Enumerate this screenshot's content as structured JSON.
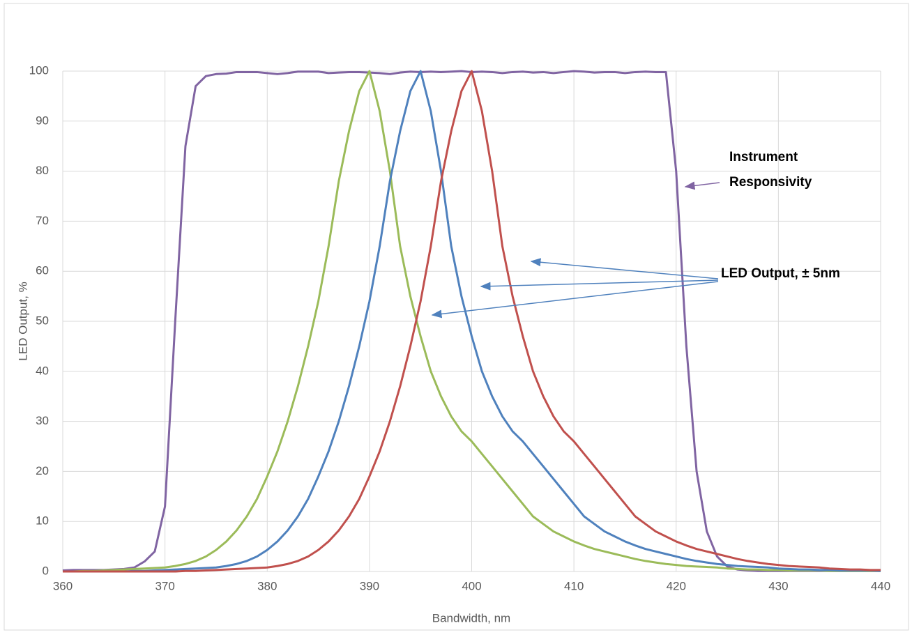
{
  "chart_data": {
    "type": "line",
    "xlabel": "Bandwidth, nm",
    "ylabel": "LED Output,  %",
    "x": [
      360,
      361,
      362,
      363,
      364,
      365,
      366,
      367,
      368,
      369,
      370,
      371,
      372,
      373,
      374,
      375,
      376,
      377,
      378,
      379,
      380,
      381,
      382,
      383,
      384,
      385,
      386,
      387,
      388,
      389,
      390,
      391,
      392,
      393,
      394,
      395,
      396,
      397,
      398,
      399,
      400,
      401,
      402,
      403,
      404,
      405,
      406,
      407,
      408,
      409,
      410,
      411,
      412,
      413,
      414,
      415,
      416,
      417,
      418,
      419,
      420,
      421,
      422,
      423,
      424,
      425,
      426,
      427,
      428,
      429,
      430,
      431,
      432,
      433,
      434,
      435,
      436,
      437,
      438,
      439,
      440
    ],
    "series": [
      {
        "color": "#8064a2",
        "values": [
          0.2,
          0.3,
          0.3,
          0.3,
          0.3,
          0.4,
          0.5,
          0.8,
          2,
          4,
          13,
          50,
          85,
          97,
          99,
          99.4,
          99.5,
          99.8,
          99.8,
          99.8,
          99.6,
          99.4,
          99.6,
          99.9,
          99.9,
          99.9,
          99.6,
          99.7,
          99.8,
          99.8,
          99.7,
          99.6,
          99.4,
          99.7,
          99.9,
          99.8,
          99.9,
          99.8,
          99.9,
          100,
          99.8,
          99.9,
          99.8,
          99.6,
          99.8,
          99.9,
          99.7,
          99.8,
          99.6,
          99.8,
          100,
          99.9,
          99.7,
          99.8,
          99.8,
          99.6,
          99.8,
          99.9,
          99.8,
          99.8,
          80,
          45,
          20,
          8,
          3,
          1,
          0.4,
          0.2,
          0.1,
          0.1,
          0.1,
          0.1,
          0.1,
          0.1,
          0.1,
          0.1,
          0.1,
          0.1,
          0.1,
          0.1,
          0.1
        ]
      },
      {
        "color": "#9bbb59",
        "values": [
          0,
          0,
          0.1,
          0.1,
          0.2,
          0.3,
          0.4,
          0.5,
          0.6,
          0.7,
          0.8,
          1.1,
          1.5,
          2.1,
          3,
          4.3,
          6,
          8.2,
          11,
          14.5,
          19,
          24,
          30,
          37,
          45,
          54,
          65,
          78,
          88,
          96,
          100,
          92,
          80,
          65,
          55,
          47,
          40,
          35,
          31,
          28,
          26,
          23.5,
          21,
          18.5,
          16,
          13.5,
          11,
          9.5,
          8,
          7,
          6,
          5.2,
          4.5,
          4,
          3.5,
          3,
          2.5,
          2.1,
          1.8,
          1.5,
          1.3,
          1.1,
          1,
          0.9,
          0.8,
          0.6,
          0.5,
          0.4,
          0.4,
          0.3,
          0.3,
          0.2,
          0.2,
          0.2,
          0.2,
          0.1,
          0.1,
          0.1,
          0.1,
          0.1,
          0.1
        ]
      },
      {
        "color": "#4f81bd",
        "values": [
          0,
          0,
          0,
          0,
          0,
          0,
          0,
          0.1,
          0.1,
          0.2,
          0.3,
          0.4,
          0.5,
          0.6,
          0.7,
          0.8,
          1.1,
          1.5,
          2.1,
          3,
          4.3,
          6,
          8.2,
          11,
          14.5,
          19,
          24,
          30,
          37,
          45,
          54,
          65,
          78,
          88,
          96,
          100,
          92,
          80,
          65,
          55,
          47,
          40,
          35,
          31,
          28,
          26,
          23.5,
          21,
          18.5,
          16,
          13.5,
          11,
          9.5,
          8,
          7,
          6,
          5.2,
          4.5,
          4,
          3.5,
          3,
          2.5,
          2.1,
          1.8,
          1.5,
          1.3,
          1.1,
          1,
          0.9,
          0.8,
          0.6,
          0.5,
          0.4,
          0.4,
          0.3,
          0.3,
          0.2,
          0.2,
          0.2,
          0.2,
          0.1
        ]
      },
      {
        "color": "#c0504d",
        "values": [
          0,
          0,
          0,
          0,
          0,
          0,
          0,
          0,
          0,
          0,
          0,
          0,
          0.1,
          0.1,
          0.2,
          0.3,
          0.4,
          0.5,
          0.6,
          0.7,
          0.8,
          1.1,
          1.5,
          2.1,
          3,
          4.3,
          6,
          8.2,
          11,
          14.5,
          19,
          24,
          30,
          37,
          45,
          54,
          65,
          78,
          88,
          96,
          100,
          92,
          80,
          65,
          55,
          47,
          40,
          35,
          31,
          28,
          26,
          23.5,
          21,
          18.5,
          16,
          13.5,
          11,
          9.5,
          8,
          7,
          6,
          5.2,
          4.5,
          4,
          3.5,
          3,
          2.5,
          2.1,
          1.8,
          1.5,
          1.3,
          1.1,
          1,
          0.9,
          0.8,
          0.6,
          0.5,
          0.4,
          0.4,
          0.3,
          0.3
        ]
      }
    ],
    "xlim": [
      360,
      440
    ],
    "xticks": [
      360,
      370,
      380,
      390,
      400,
      410,
      420,
      430,
      440
    ],
    "ylim": [
      0,
      100
    ],
    "yticks": [
      0,
      10,
      20,
      30,
      40,
      50,
      60,
      70,
      80,
      90,
      100
    ],
    "grid": true,
    "annotations": [
      {
        "lines": [
          "Instrument",
          "Responsivity"
        ]
      },
      {
        "lines": [
          "LED Output,  ± 5nm"
        ]
      }
    ]
  }
}
